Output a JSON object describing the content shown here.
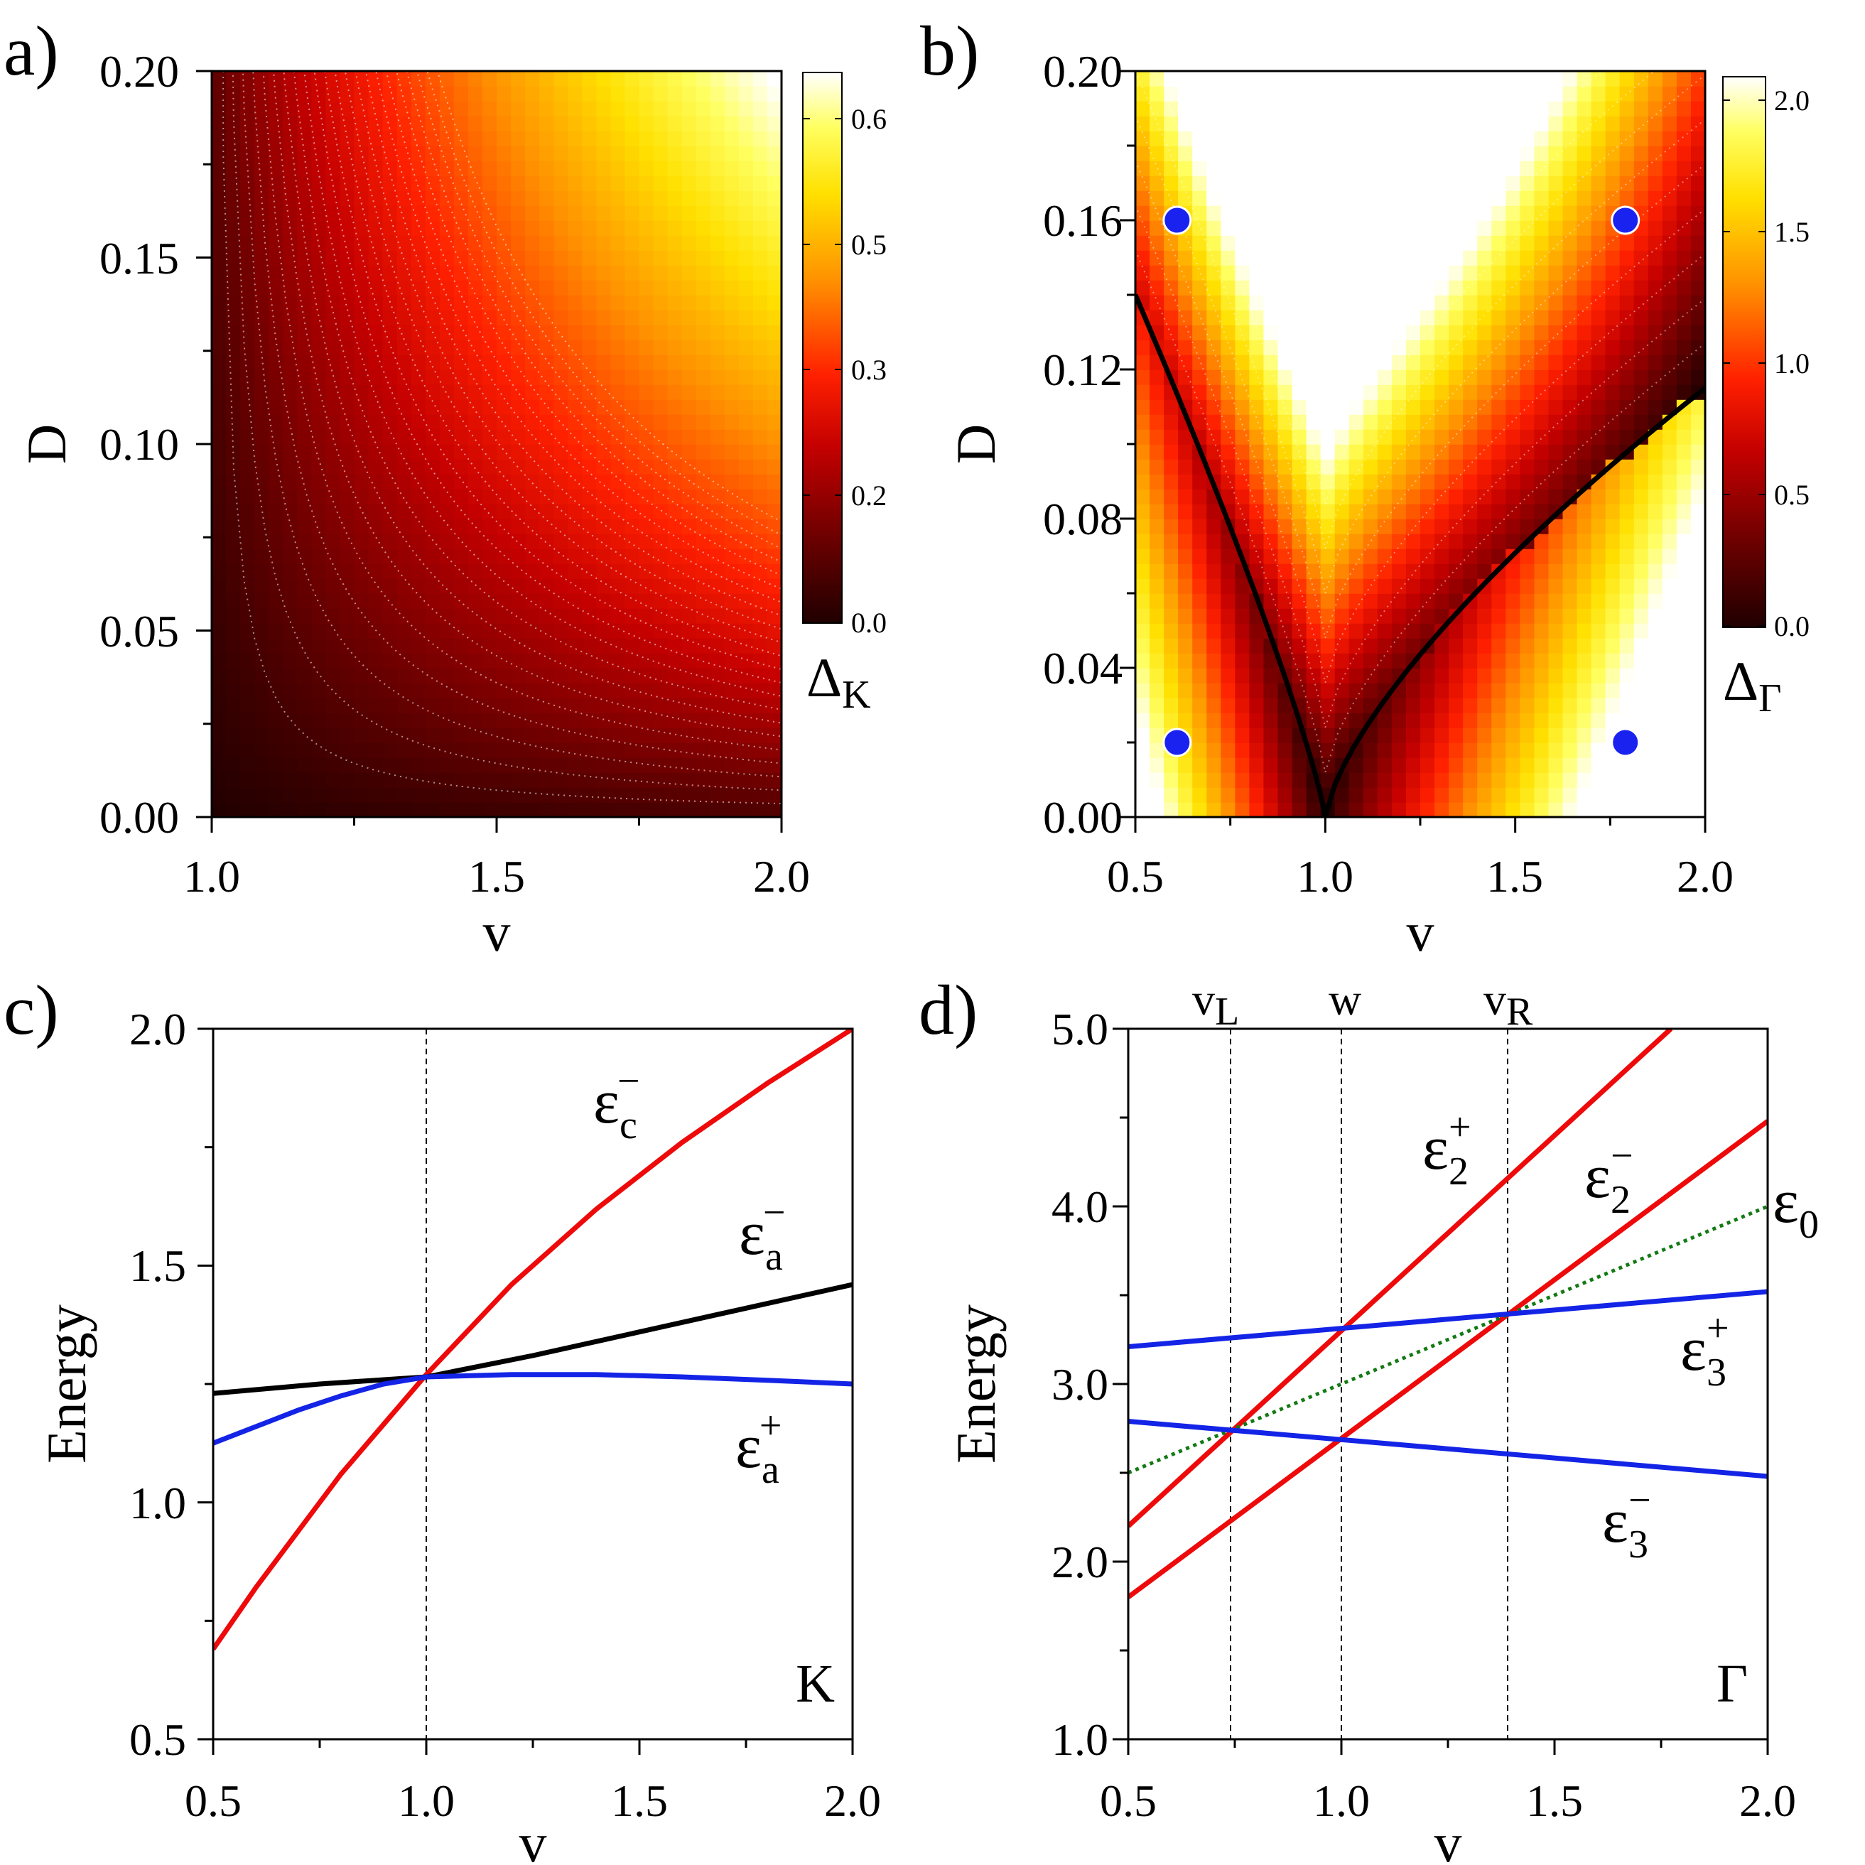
{
  "colors": {
    "red": "#ee0a0a",
    "blue": "#1424e6",
    "black": "#000000",
    "green": "#137a13",
    "dot": "#1a22f0",
    "heat": [
      "#2a0000",
      "#6a0000",
      "#b00000",
      "#ff1a00",
      "#ff8a00",
      "#ffd000",
      "#ffff30",
      "#ffffff"
    ]
  },
  "panels": {
    "a": "a)",
    "b": "b)",
    "c": "c)",
    "d": "d)"
  },
  "chart_data": [
    {
      "id": "a",
      "type": "heatmap",
      "xlabel": "v",
      "ylabel": "D",
      "xlim": [
        1.0,
        2.0
      ],
      "ylim": [
        0.0,
        0.2
      ],
      "xticks": [
        "1.0",
        "1.5",
        "2.0"
      ],
      "yticks": [
        "0.00",
        "0.05",
        "0.10",
        "0.15",
        "0.20"
      ],
      "colorbar": {
        "label_main": "Δ",
        "label_sub": "K",
        "range": [
          0.0,
          0.63
        ],
        "ticks": [
          "0.0",
          "0.2",
          "0.3",
          "0.5",
          "0.6"
        ]
      },
      "contours": "dotted white, Δ_K increasing toward (v=2.0, D=0.20)"
    },
    {
      "id": "b",
      "type": "heatmap",
      "xlabel": "v",
      "ylabel": "D",
      "xlim": [
        0.5,
        2.0
      ],
      "ylim": [
        0.0,
        0.2
      ],
      "xticks": [
        "0.5",
        "1.0",
        "1.5",
        "2.0"
      ],
      "yticks": [
        "0.00",
        "0.04",
        "0.08",
        "0.12",
        "0.16",
        "0.20"
      ],
      "colorbar": {
        "label_main": "Δ",
        "label_sub": "Γ",
        "range": [
          0.0,
          2.1
        ],
        "ticks": [
          "0.0",
          "0.5",
          "1.0",
          "1.5",
          "2.0"
        ]
      },
      "zero_gap_curves": "black lines from (1.0, 0.00) to (0.5, 0.14) and to (2.0, 0.115)",
      "points": [
        {
          "v": 0.61,
          "D": 0.16
        },
        {
          "v": 1.79,
          "D": 0.16
        },
        {
          "v": 0.61,
          "D": 0.02
        },
        {
          "v": 1.79,
          "D": 0.02
        }
      ]
    },
    {
      "id": "c",
      "type": "line",
      "xlabel": "v",
      "ylabel": "Energy",
      "xlim": [
        0.5,
        2.0
      ],
      "ylim": [
        0.5,
        2.0
      ],
      "xticks": [
        "0.5",
        "1.0",
        "1.5",
        "2.0"
      ],
      "yticks": [
        "0.5",
        "1.0",
        "1.5",
        "2.0"
      ],
      "corner_label": "K",
      "vlines": [
        1.0
      ],
      "series": [
        {
          "name": "ε_c^−",
          "label_main": "ε",
          "label_sub": "c",
          "label_sup": "−",
          "color": "red",
          "x": [
            0.5,
            0.6,
            0.7,
            0.8,
            0.9,
            1.0,
            1.2,
            1.4,
            1.6,
            1.8,
            2.0
          ],
          "y": [
            0.69,
            0.82,
            0.94,
            1.06,
            1.165,
            1.27,
            1.46,
            1.62,
            1.76,
            1.885,
            2.0
          ]
        },
        {
          "name": "ε_a^−",
          "label_main": "ε",
          "label_sub": "a",
          "label_sup": "−",
          "color": "black",
          "x": [
            0.5,
            0.75,
            1.0,
            1.25,
            1.5,
            1.75,
            2.0
          ],
          "y": [
            1.23,
            1.25,
            1.265,
            1.31,
            1.36,
            1.41,
            1.46
          ]
        },
        {
          "name": "ε_a^+",
          "label_main": "ε",
          "label_sub": "a",
          "label_sup": "+",
          "color": "blue",
          "x": [
            0.5,
            0.6,
            0.7,
            0.8,
            0.9,
            1.0,
            1.2,
            1.4,
            1.6,
            1.8,
            2.0
          ],
          "y": [
            1.125,
            1.16,
            1.195,
            1.225,
            1.25,
            1.265,
            1.27,
            1.27,
            1.265,
            1.258,
            1.25
          ]
        }
      ]
    },
    {
      "id": "d",
      "type": "line",
      "xlabel": "v",
      "ylabel": "Energy",
      "xlim": [
        0.5,
        2.0
      ],
      "ylim": [
        1.0,
        5.0
      ],
      "xticks": [
        "0.5",
        "1.0",
        "1.5",
        "2.0"
      ],
      "yticks": [
        "1.0",
        "2.0",
        "3.0",
        "4.0",
        "5.0"
      ],
      "corner_label": "Γ",
      "vlines": [
        {
          "x": 0.74,
          "label_main": "v",
          "label_sub": "L"
        },
        {
          "x": 1.0,
          "label_main": "w",
          "label_sub": ""
        },
        {
          "x": 1.39,
          "label_main": "v",
          "label_sub": "R"
        }
      ],
      "series": [
        {
          "name": "ε_2^+",
          "label_main": "ε",
          "label_sub": "2",
          "label_sup": "+",
          "color": "red",
          "style": "solid",
          "x": [
            0.5,
            1.773
          ],
          "y": [
            2.2,
            5.0
          ]
        },
        {
          "name": "ε_2^−",
          "label_main": "ε",
          "label_sub": "2",
          "label_sup": "−",
          "color": "red",
          "style": "solid",
          "x": [
            0.5,
            2.0
          ],
          "y": [
            1.8,
            4.48
          ]
        },
        {
          "name": "ε_0",
          "label_main": "ε",
          "label_sub": "0",
          "label_sup": "",
          "color": "green",
          "style": "dotted",
          "x": [
            0.5,
            2.0
          ],
          "y": [
            2.5,
            4.0
          ]
        },
        {
          "name": "ε_3^+",
          "label_main": "ε",
          "label_sub": "3",
          "label_sup": "+",
          "color": "blue",
          "style": "solid",
          "x": [
            0.5,
            2.0
          ],
          "y": [
            3.21,
            3.52
          ]
        },
        {
          "name": "ε_3^−",
          "label_main": "ε",
          "label_sub": "3",
          "label_sup": "−",
          "color": "blue",
          "style": "solid",
          "x": [
            0.5,
            2.0
          ],
          "y": [
            2.79,
            2.48
          ]
        }
      ]
    }
  ]
}
